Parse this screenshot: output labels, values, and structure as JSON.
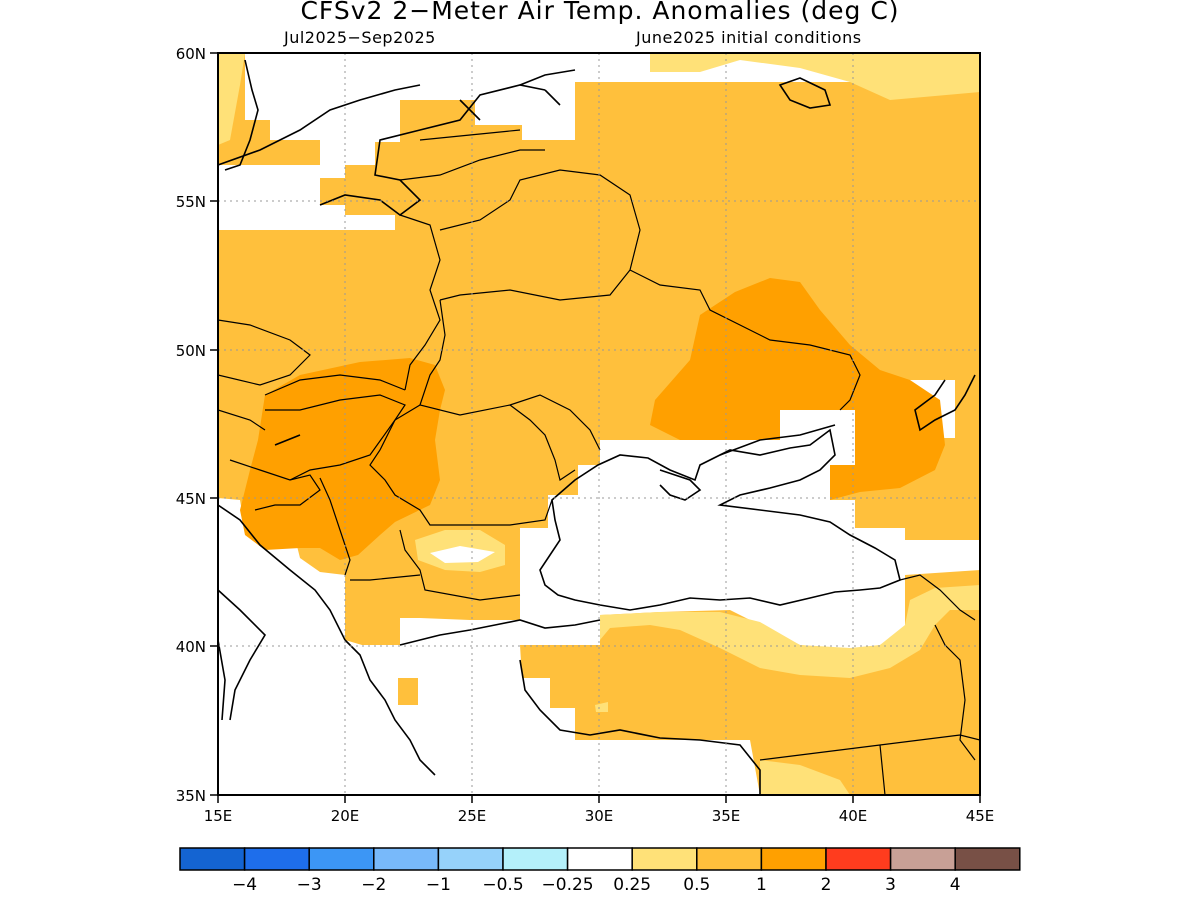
{
  "title": "CFSv2 2−Meter Air Temp. Anomalies (deg C)",
  "subtitle_left": "Jul2025−Sep2025",
  "subtitle_right": "June2025 initial conditions",
  "map": {
    "lon_range": [
      15,
      45
    ],
    "lat_range": [
      35,
      60
    ],
    "lon_ticks": [
      "15E",
      "20E",
      "25E",
      "30E",
      "35E",
      "40E",
      "45E"
    ],
    "lat_ticks": [
      "60N",
      "55N",
      "50N",
      "45N",
      "40N",
      "35N"
    ],
    "gridlines": "dotted"
  },
  "colorbar": {
    "colors": [
      "#1464d2",
      "#1e6eeb",
      "#3c96f5",
      "#78b9fa",
      "#96d2fa",
      "#b4f0fa",
      "#ffffff",
      "#ffe178",
      "#ffc03c",
      "#ffa000",
      "#ff3c1e",
      "#c8a096",
      "#785046"
    ],
    "labels": [
      "−4",
      "−3",
      "−2",
      "−1",
      "−0.5",
      "−0.25",
      "0.25",
      "0.5",
      "1",
      "2",
      "3",
      "4"
    ]
  }
}
